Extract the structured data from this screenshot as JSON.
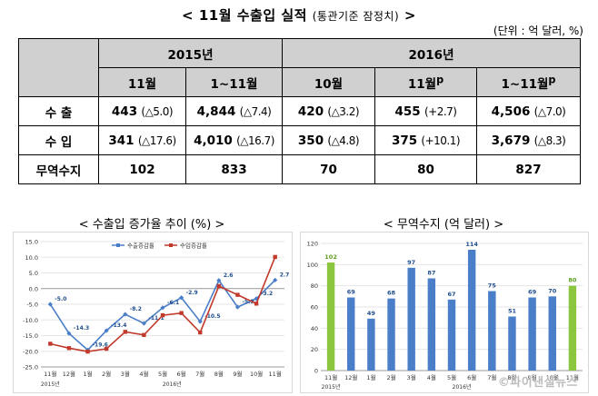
{
  "header": {
    "title": "< 11월 수출입 실적",
    "subtitle": "(통관기준 잠정치)",
    "title_end": ">",
    "unit": "(단위 : 억 달러, %)"
  },
  "table": {
    "year_headers": [
      "2015년",
      "2016년"
    ],
    "month_headers": [
      "11월",
      "1~11월",
      "10월",
      "11월",
      "1~11월"
    ],
    "month_superscripts": [
      "",
      "",
      "",
      "p",
      "p"
    ],
    "rows": [
      {
        "label": "수   출",
        "cells": [
          {
            "value": "443",
            "change": "(△5.0)"
          },
          {
            "value": "4,844",
            "change": "(△7.4)"
          },
          {
            "value": "420",
            "change": "(△3.2)"
          },
          {
            "value": "455",
            "change": "(+2.7)"
          },
          {
            "value": "4,506",
            "change": "(△7.0)"
          }
        ]
      },
      {
        "label": "수   입",
        "cells": [
          {
            "value": "341",
            "change": "(△17.6)"
          },
          {
            "value": "4,010",
            "change": "(△16.7)"
          },
          {
            "value": "350",
            "change": "(△4.8)"
          },
          {
            "value": "375",
            "change": "(+10.1)"
          },
          {
            "value": "3,679",
            "change": "(△8.3)"
          }
        ]
      },
      {
        "label": "무역수지",
        "cells": [
          {
            "value": "102",
            "change": ""
          },
          {
            "value": "833",
            "change": ""
          },
          {
            "value": "70",
            "change": ""
          },
          {
            "value": "80",
            "change": ""
          },
          {
            "value": "827",
            "change": ""
          }
        ]
      }
    ]
  },
  "chart_data": [
    {
      "type": "line",
      "title": "< 수출입 증가율 추이 (%) >",
      "categories": [
        "11월",
        "12월",
        "1월",
        "2월",
        "3월",
        "4월",
        "5월",
        "6월",
        "7월",
        "8월",
        "9월",
        "10월",
        "11월"
      ],
      "year_labels": [
        {
          "label": "2015년",
          "at": 0
        },
        {
          "label": "2016년",
          "at": 6.5
        }
      ],
      "ylim": [
        -25,
        15
      ],
      "yticks": [
        "15.0",
        "10.0",
        "5.0",
        "0.0",
        "-5.0",
        "-10.0",
        "-15.0",
        "-20.0",
        "-25.0"
      ],
      "ytick_values": [
        15,
        10,
        5,
        0,
        -5,
        -10,
        -15,
        -20,
        -25
      ],
      "legend_position": "top",
      "series": [
        {
          "name": "수출증감률",
          "color": "#4a7ec8",
          "values": [
            -5.0,
            -14.3,
            -19.6,
            -13.4,
            -8.2,
            -11.1,
            -6.1,
            -2.9,
            -10.5,
            2.6,
            -5.9,
            -3.2,
            2.7
          ],
          "labels": [
            "-5.0",
            "-14.3",
            "-19.6",
            "-13.4",
            "-8.2",
            "-11.1",
            "-6.1",
            "-2.9",
            "-10.5",
            "2.6",
            "-5.9",
            "-3.2",
            "2.7"
          ]
        },
        {
          "name": "수입증감률",
          "color": "#c0392b",
          "values": [
            -17.6,
            -19.0,
            -20.1,
            -19.2,
            -13.8,
            -14.8,
            -8.5,
            -7.8,
            -14.0,
            0.8,
            -2.0,
            -4.8,
            10.1
          ]
        }
      ]
    },
    {
      "type": "bar",
      "title": "< 무역수지 (억 달러) >",
      "categories": [
        "11월",
        "12월",
        "1월",
        "2월",
        "3월",
        "4월",
        "5월",
        "6월",
        "7월",
        "8월",
        "9월",
        "10월",
        "11월"
      ],
      "year_labels": [
        {
          "label": "2015년",
          "at": 0
        },
        {
          "label": "2016년",
          "at": 6.5
        }
      ],
      "ylim": [
        0,
        120
      ],
      "yticks": [
        "120",
        "100",
        "80",
        "60",
        "40",
        "20",
        "0"
      ],
      "ytick_values": [
        120,
        100,
        80,
        60,
        40,
        20,
        0
      ],
      "values": [
        102,
        69,
        49,
        68,
        97,
        87,
        67,
        114,
        75,
        51,
        69,
        70,
        80
      ],
      "colors": [
        "#8cc63f",
        "#4a7ec8",
        "#4a7ec8",
        "#4a7ec8",
        "#4a7ec8",
        "#4a7ec8",
        "#4a7ec8",
        "#4a7ec8",
        "#4a7ec8",
        "#4a7ec8",
        "#4a7ec8",
        "#4a7ec8",
        "#8cc63f"
      ]
    }
  ],
  "watermark": "©파이낸셜뉴스"
}
